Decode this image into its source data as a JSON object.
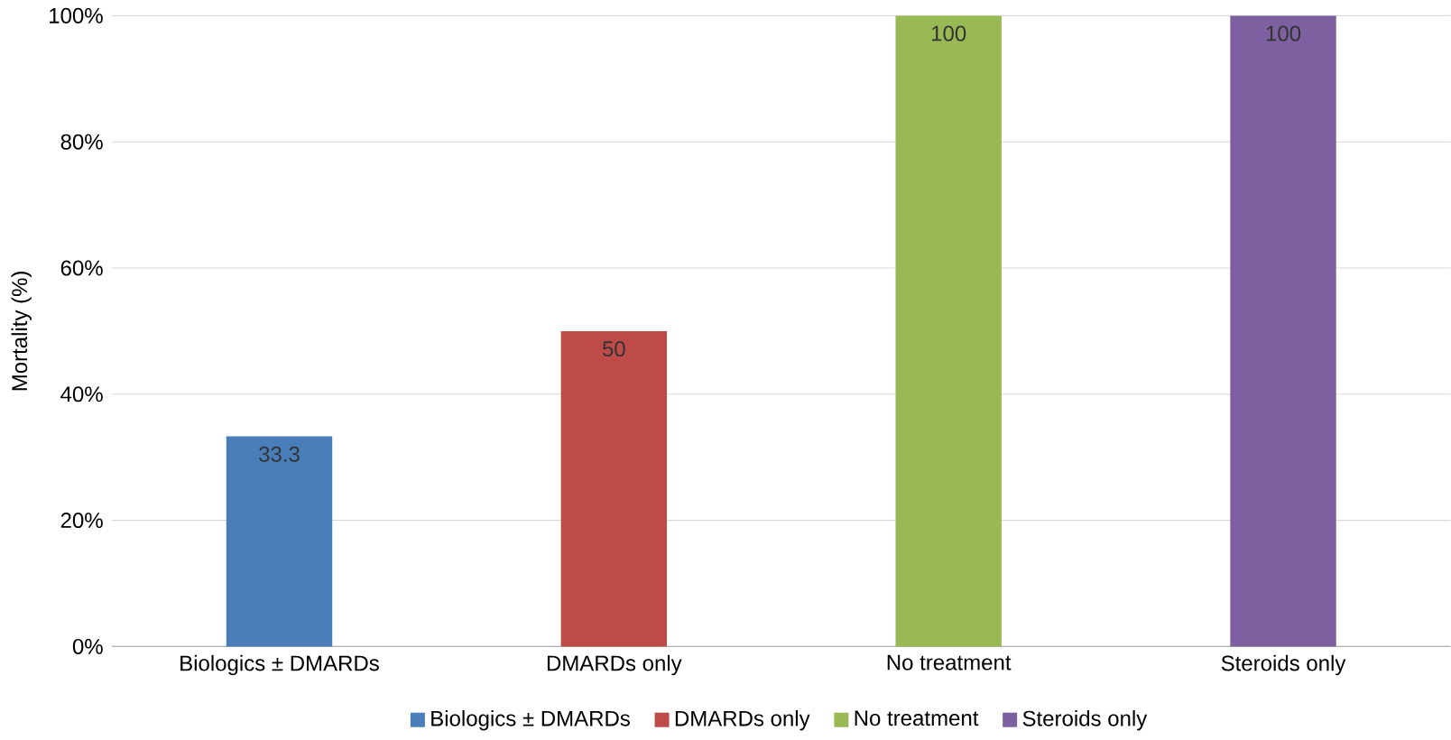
{
  "chart_data": {
    "type": "bar",
    "ylabel": "Mortality (%)",
    "categories": [
      "Biologics ± DMARDs",
      "DMARDs only",
      "No treatment",
      "Steroids only"
    ],
    "series": [
      {
        "name": "Biologics ± DMARDs",
        "color": "#4a7ebb",
        "values": [
          33.3,
          null,
          null,
          null
        ],
        "value_labels": [
          "33.3",
          null,
          null,
          null
        ]
      },
      {
        "name": "DMARDs only",
        "color": "#be4b48",
        "values": [
          null,
          50,
          null,
          null
        ],
        "value_labels": [
          null,
          "50",
          null,
          null
        ]
      },
      {
        "name": "No treatment",
        "color": "#98b954",
        "values": [
          null,
          null,
          100,
          null
        ],
        "value_labels": [
          null,
          null,
          "100",
          null
        ]
      },
      {
        "name": "Steroids only",
        "color": "#7d60a0",
        "values": [
          null,
          null,
          null,
          100
        ],
        "value_labels": [
          null,
          null,
          null,
          "100"
        ]
      }
    ],
    "ylim": [
      0,
      100
    ],
    "yticks": [
      {
        "value": 0,
        "label": "0%"
      },
      {
        "value": 20,
        "label": "20%"
      },
      {
        "value": 40,
        "label": "40%"
      },
      {
        "value": 60,
        "label": "60%"
      },
      {
        "value": 80,
        "label": "80%"
      },
      {
        "value": 100,
        "label": "100%"
      }
    ],
    "grid": "y",
    "legend": "bottom"
  }
}
